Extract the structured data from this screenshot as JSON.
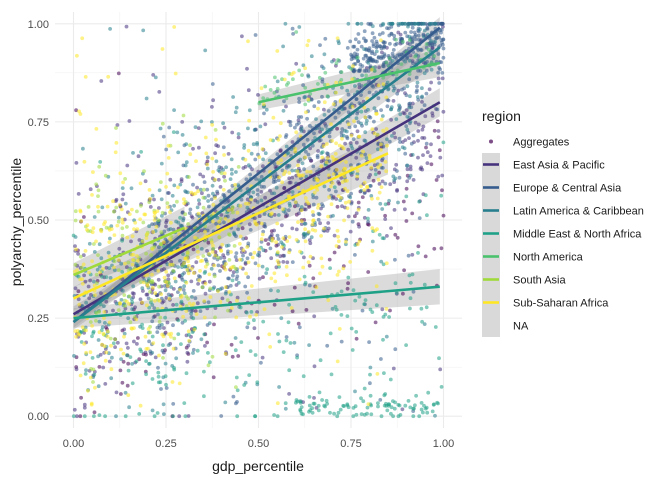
{
  "chart_data": {
    "type": "scatter",
    "title": "",
    "xlabel": "gdp_percentile",
    "ylabel": "polyarchy_percentile",
    "xlim": [
      -0.05,
      1.05
    ],
    "ylim": [
      -0.03,
      1.03
    ],
    "x_ticks": [
      0,
      0.25,
      0.5,
      0.75,
      1
    ],
    "x_tick_labels": [
      "0.00",
      "0.25",
      "0.50",
      "0.75",
      "1.00"
    ],
    "y_ticks": [
      0,
      0.25,
      0.5,
      0.75,
      1
    ],
    "y_tick_labels": [
      "0.00",
      "0.25",
      "0.50",
      "0.75",
      "1.00"
    ],
    "grid": true,
    "legend": {
      "title": "region",
      "placement": "right",
      "entries": [
        {
          "label": "Aggregates",
          "color": "#440154",
          "kind": "point"
        },
        {
          "label": "East Asia & Pacific",
          "color": "#46337E",
          "kind": "line"
        },
        {
          "label": "Europe & Central Asia",
          "color": "#365C8D",
          "kind": "line"
        },
        {
          "label": "Latin America & Caribbean",
          "color": "#277F8E",
          "kind": "line"
        },
        {
          "label": "Middle East & North Africa",
          "color": "#1FA187",
          "kind": "line"
        },
        {
          "label": "North America",
          "color": "#4AC16D",
          "kind": "line"
        },
        {
          "label": "South Asia",
          "color": "#9FDA3A",
          "kind": "line"
        },
        {
          "label": "Sub-Saharan Africa",
          "color": "#FDE725",
          "kind": "line"
        },
        {
          "label": "NA",
          "color": "#BFBFBF",
          "kind": "blank"
        }
      ]
    },
    "trend_lines": [
      {
        "name": "East Asia & Pacific",
        "color": "#46337E",
        "x": [
          0,
          0.99
        ],
        "y": [
          0.26,
          0.8
        ],
        "ci": 0.02
      },
      {
        "name": "Europe & Central Asia",
        "color": "#365C8D",
        "x": [
          0,
          0.99
        ],
        "y": [
          0.24,
          0.99
        ],
        "ci": 0.015
      },
      {
        "name": "Latin America & Caribbean",
        "color": "#277F8E",
        "x": [
          0,
          0.99
        ],
        "y": [
          0.24,
          0.94
        ],
        "ci": 0.02
      },
      {
        "name": "Middle East & North Africa",
        "color": "#1FA187",
        "x": [
          0,
          0.99
        ],
        "y": [
          0.25,
          0.33
        ],
        "ci": 0.025
      },
      {
        "name": "North America",
        "color": "#4AC16D",
        "x": [
          0.5,
          0.99
        ],
        "y": [
          0.8,
          0.9
        ],
        "ci": 0.02
      },
      {
        "name": "South Asia",
        "color": "#9FDA3A",
        "x": [
          0,
          0.3
        ],
        "y": [
          0.36,
          0.48
        ],
        "ci": 0.03
      },
      {
        "name": "Sub-Saharan Africa",
        "color": "#FDE725",
        "x": [
          0,
          0.85
        ],
        "y": [
          0.3,
          0.67
        ],
        "ci": 0.03
      }
    ],
    "scatter_clusters": [
      {
        "region": "Aggregates",
        "color": "#440154",
        "count": 160,
        "x": [
          0.0,
          1.0
        ],
        "y": [
          0.0,
          1.0
        ],
        "trend": [
          0.2,
          0.55
        ],
        "spread": 0.3
      },
      {
        "region": "East Asia & Pacific",
        "color": "#46337E",
        "count": 520,
        "x": [
          0.0,
          1.0
        ],
        "y": [
          0.0,
          1.0
        ],
        "trend": [
          0.26,
          0.8
        ],
        "spread": 0.28
      },
      {
        "region": "Europe & Central Asia",
        "color": "#365C8D",
        "count": 620,
        "x": [
          0.2,
          1.0
        ],
        "y": [
          0.0,
          1.0
        ],
        "trend": [
          0.3,
          0.95
        ],
        "spread": 0.22
      },
      {
        "region": "Europe & Central Asia",
        "color": "#365C8D",
        "count": 200,
        "x": [
          0.75,
          1.0
        ],
        "y": [
          0.88,
          1.0
        ],
        "trend": [
          0.9,
          0.98
        ],
        "spread": 0.05
      },
      {
        "region": "Latin America & Caribbean",
        "color": "#277F8E",
        "count": 480,
        "x": [
          0.0,
          0.98
        ],
        "y": [
          0.0,
          1.0
        ],
        "trend": [
          0.24,
          0.94
        ],
        "spread": 0.28
      },
      {
        "region": "Middle East & North Africa",
        "color": "#1FA187",
        "count": 220,
        "x": [
          0.0,
          1.0
        ],
        "y": [
          0.0,
          0.8
        ],
        "trend": [
          0.2,
          0.3
        ],
        "spread": 0.28
      },
      {
        "region": "Middle East & North Africa",
        "color": "#1FA187",
        "count": 90,
        "x": [
          0.6,
          0.99
        ],
        "y": [
          0.0,
          0.06
        ],
        "trend": [
          0.02,
          0.02
        ],
        "spread": 0.03
      },
      {
        "region": "North America",
        "color": "#4AC16D",
        "count": 70,
        "x": [
          0.5,
          0.99
        ],
        "y": [
          0.72,
          0.98
        ],
        "trend": [
          0.82,
          0.92
        ],
        "spread": 0.05
      },
      {
        "region": "South Asia",
        "color": "#9FDA3A",
        "count": 160,
        "x": [
          0.0,
          0.45
        ],
        "y": [
          0.05,
          0.8
        ],
        "trend": [
          0.36,
          0.5
        ],
        "spread": 0.22
      },
      {
        "region": "Sub-Saharan Africa",
        "color": "#FDE725",
        "count": 600,
        "x": [
          0.0,
          0.85
        ],
        "y": [
          0.0,
          1.0
        ],
        "trend": [
          0.3,
          0.67
        ],
        "spread": 0.26
      }
    ]
  }
}
